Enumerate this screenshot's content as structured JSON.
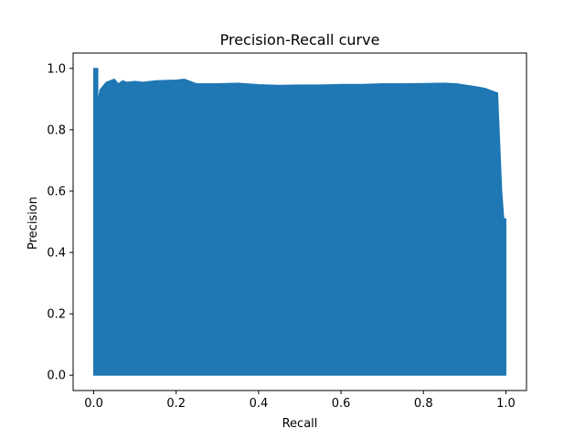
{
  "chart_data": {
    "type": "area",
    "title": "Precision-Recall curve",
    "xlabel": "Recall",
    "ylabel": "Precision",
    "xlim": [
      -0.05,
      1.05
    ],
    "ylim": [
      -0.05,
      1.05
    ],
    "xticks": [
      0.0,
      0.2,
      0.4,
      0.6,
      0.8,
      1.0
    ],
    "yticks": [
      0.0,
      0.2,
      0.4,
      0.6,
      0.8,
      1.0
    ],
    "xtick_labels": [
      "0.0",
      "0.2",
      "0.4",
      "0.6",
      "0.8",
      "1.0"
    ],
    "ytick_labels": [
      "0.0",
      "0.2",
      "0.4",
      "0.6",
      "0.8",
      "1.0"
    ],
    "grid": false,
    "fill_color": "#1f77b4",
    "series": [
      {
        "x": [
          0.0,
          0.0,
          0.01,
          0.01,
          0.015,
          0.03,
          0.05,
          0.06,
          0.07,
          0.08,
          0.1,
          0.12,
          0.15,
          0.2,
          0.22,
          0.25,
          0.3,
          0.35,
          0.4,
          0.45,
          0.5,
          0.55,
          0.6,
          0.65,
          0.7,
          0.75,
          0.8,
          0.85,
          0.88,
          0.9,
          0.93,
          0.95,
          0.97,
          0.98,
          0.985,
          0.99,
          0.995,
          1.0
        ],
        "y": [
          0.0,
          1.0,
          1.0,
          0.89,
          0.93,
          0.955,
          0.965,
          0.95,
          0.96,
          0.955,
          0.958,
          0.955,
          0.96,
          0.962,
          0.965,
          0.95,
          0.95,
          0.952,
          0.947,
          0.945,
          0.946,
          0.946,
          0.948,
          0.948,
          0.95,
          0.95,
          0.951,
          0.952,
          0.95,
          0.946,
          0.94,
          0.935,
          0.925,
          0.92,
          0.76,
          0.6,
          0.51,
          0.51
        ]
      }
    ]
  }
}
